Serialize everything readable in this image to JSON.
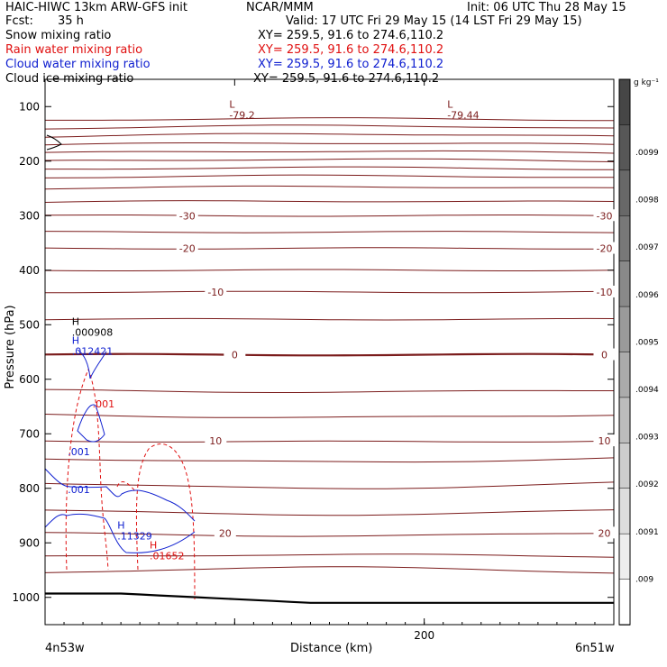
{
  "header": {
    "model": "HAIC-HIWC 13km ARW-GFS init",
    "org": "NCAR/MMM",
    "init": "Init: 06 UTC Thu 28 May 15",
    "fcst_label": "Fcst:",
    "fcst_value": "35 h",
    "valid": "Valid: 17 UTC Fri 29 May 15 (14 LST Fri 29 May 15)"
  },
  "fields": [
    {
      "name": "Snow mixing ratio",
      "xy": "XY= 259.5, 91.6 to 274.6,110.2",
      "color": "#000000"
    },
    {
      "name": "Rain water mixing ratio",
      "xy": "XY= 259.5, 91.6 to 274.6,110.2",
      "color": "#e01010"
    },
    {
      "name": "Cloud water mixing ratio",
      "xy": "XY= 259.5, 91.6 to 274.6,110.2",
      "color": "#1020d0"
    },
    {
      "name": "Cloud ice mixing ratio",
      "xy": "XY= 259.5, 91.6 to 274.6,110.2",
      "color": "#000000"
    }
  ],
  "chart_data": {
    "type": "contour cross-section",
    "xlabel": "Distance (km)",
    "ylabel": "Pressure (hPa)",
    "x_ticks": [
      0,
      100,
      200,
      300
    ],
    "x_tick_labels": [
      {
        "x": 200,
        "label": "200"
      }
    ],
    "xlim": [
      0,
      300
    ],
    "y_ticks": [
      100,
      200,
      300,
      400,
      500,
      600,
      700,
      800,
      900,
      1000
    ],
    "ylim": [
      1050,
      50
    ],
    "left_endpoint": "4n53w",
    "right_endpoint": "6n51w",
    "temperature_contour_labels": [
      {
        "label": "-30",
        "p": 300,
        "x": [
          75,
          295
        ]
      },
      {
        "label": "-20",
        "p": 360,
        "x": [
          75,
          295
        ]
      },
      {
        "label": "-10",
        "p": 440,
        "x": [
          90,
          295
        ]
      },
      {
        "label": "0",
        "p": 555,
        "x": [
          100,
          295
        ]
      },
      {
        "label": "10",
        "p": 713,
        "x": [
          90,
          295
        ]
      },
      {
        "label": "20",
        "p": 882,
        "x": [
          95,
          295
        ]
      }
    ],
    "extrema_labels": [
      {
        "kind": "L",
        "value": "-79.2",
        "x": 100,
        "p": 112,
        "color": "#7b1c1c"
      },
      {
        "kind": "L",
        "value": "-79.44",
        "x": 215,
        "p": 112,
        "color": "#7b1c1c"
      },
      {
        "kind": "H",
        "value": ".000908",
        "x": 17,
        "p": 510,
        "color": "#000000"
      },
      {
        "kind": "H",
        "value": ".012421",
        "x": 17,
        "p": 545,
        "color": "#1020d0"
      },
      {
        "kind": "H",
        "value": ".11329",
        "x": 41,
        "p": 884,
        "color": "#1020d0"
      },
      {
        "kind": "H",
        "value": ".01652",
        "x": 58,
        "p": 920,
        "color": "#e01010"
      }
    ],
    "field_labels": [
      {
        "value": ".001",
        "x": 25,
        "p": 645,
        "color": "#e01010"
      },
      {
        "value": ".001",
        "x": 12,
        "p": 733,
        "color": "#1020d0"
      },
      {
        "value": ".001",
        "x": 12,
        "p": 802,
        "color": "#1020d0"
      }
    ],
    "colorbar": {
      "unit": "g kg⁻¹",
      "ticks": [
        ".0099",
        ".0098",
        ".0097",
        ".0096",
        ".0095",
        ".0094",
        ".0093",
        ".0092",
        ".0091",
        ".009"
      ]
    }
  }
}
